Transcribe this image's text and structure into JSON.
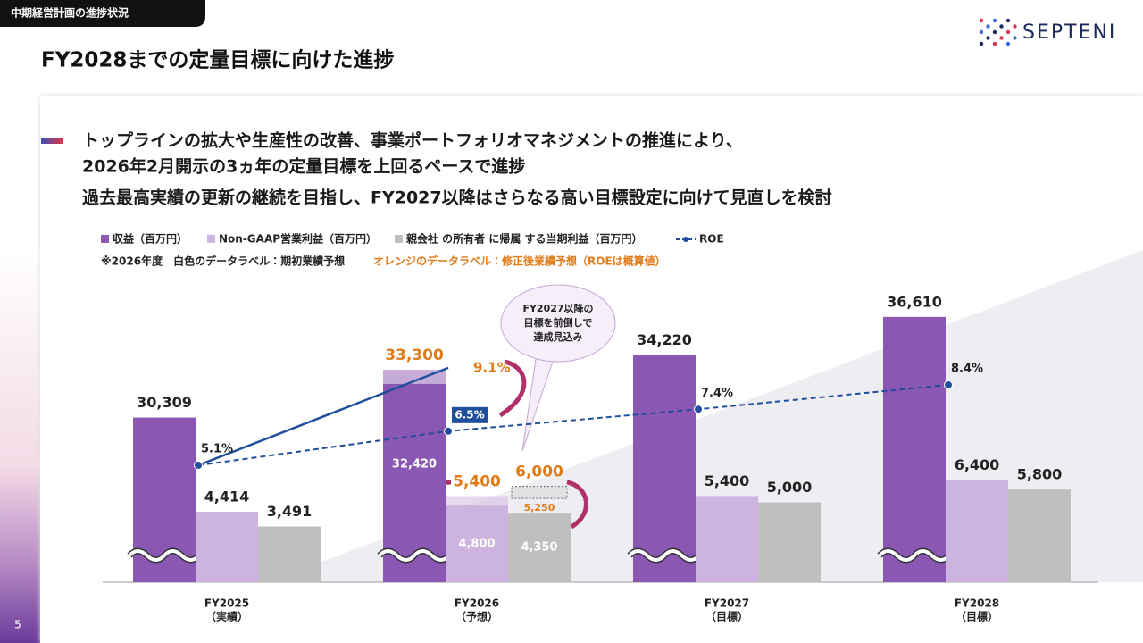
{
  "header": {
    "section": "中期経営計画の進捗状況",
    "title": "FY2028までの定量目標に向けた進捗",
    "logo": "SEPTENI"
  },
  "bullets": [
    {
      "lines": [
        "トップラインの拡大や生産性の改善、事業ポートフォリオマネジメントの推進により、",
        "2026年2月開示の3ヵ年の定量目標を上回るペースで進捗"
      ]
    },
    {
      "lines": [
        "過去最高実績の更新の継続を目指し、FY2027以降はさらなる高い目標設定に向けて見直しを検討"
      ]
    }
  ],
  "page_number": 5,
  "chart_data": {
    "type": "bar",
    "categories": [
      "FY2025",
      "FY2026",
      "FY2027",
      "FY2028"
    ],
    "category_notes": [
      "（実績）",
      "（予想）",
      "（目標）",
      "（目標）"
    ],
    "notes": [
      "※2026年度　白色のデータラベル：期初業績予想",
      "オレンジのデータラベル：修正後業績予想（ROEは概算値）"
    ],
    "callout": [
      "FY2027以降の",
      "目標を前倒しで",
      "達成見込み"
    ],
    "ylim": [
      0,
      18000
    ],
    "y2lim": [
      20000,
      38000
    ],
    "y3lim": [
      0.3,
      12.1
    ],
    "axis_break": true,
    "revised_color": "#e07b1a",
    "series": [
      {
        "name": "収益（百万円）",
        "color": "#8a57b3",
        "axis": "y2",
        "values": [
          30309,
          32420,
          34220,
          36610
        ],
        "value_labels": [
          "30,309",
          "32,420",
          "34,220",
          "36,610"
        ],
        "revised_values": [
          null,
          33300,
          null,
          null
        ],
        "revised_value_labels": [
          null,
          "33,300",
          null,
          null
        ]
      },
      {
        "name": "Non-GAAP営業利益（百万円）",
        "color": "#cdb3e0",
        "values": [
          4414,
          4800,
          5400,
          6400
        ],
        "value_labels": [
          "4,414",
          "4,800",
          "5,400",
          "6,400"
        ],
        "revised_values": [
          null,
          5400,
          null,
          null
        ],
        "revised_value_labels": [
          null,
          "5,400",
          null,
          null
        ]
      },
      {
        "name": "親会社 の所有者 に帰属 する当期利益（百万円）",
        "color": "#bfbfbf",
        "values": [
          3491,
          4350,
          5000,
          5800
        ],
        "value_labels": [
          "3,491",
          "4,350",
          "5,000",
          "5,800"
        ],
        "revised_values": [
          null,
          6000,
          null,
          null
        ],
        "revised_value_labels": [
          null,
          "6,000",
          null,
          null
        ],
        "interim_values": [
          null,
          5250,
          null,
          null
        ],
        "interim_value_labels": [
          null,
          "5,250",
          null,
          null
        ]
      },
      {
        "name": "ROE",
        "type": "line",
        "color": "#1f4e9c",
        "axis": "y3",
        "dash": true,
        "values": [
          5.1,
          6.5,
          7.4,
          8.4
        ],
        "value_labels": [
          "5.1%",
          "6.5%",
          "7.4%",
          "8.4%"
        ],
        "revised_values": [
          null,
          9.1,
          null,
          null
        ],
        "revised_value_labels": [
          null,
          "9.1%",
          null,
          null
        ]
      }
    ]
  }
}
